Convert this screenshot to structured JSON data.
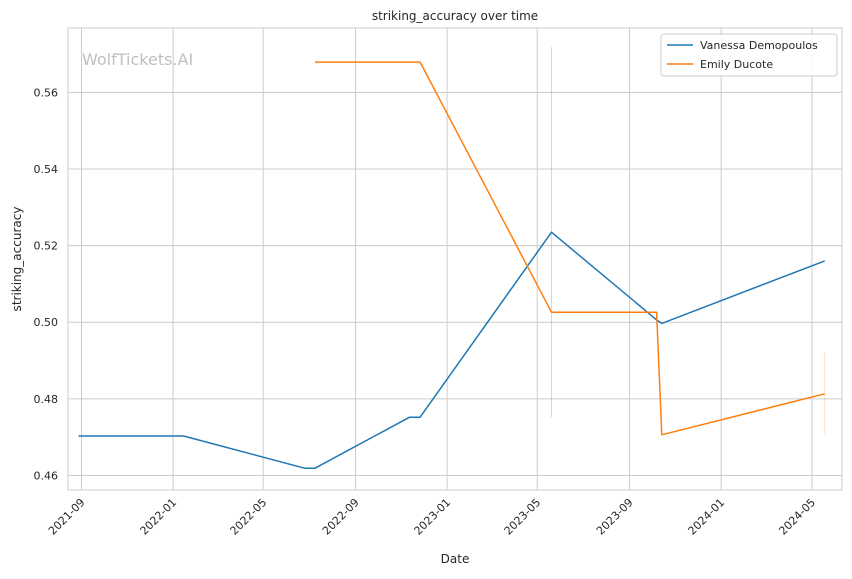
{
  "chart_data": {
    "type": "line",
    "title": "striking_accuracy over time",
    "xlabel": "Date",
    "ylabel": "striking_accuracy",
    "watermark": "WolfTickets.AI",
    "x_ticks": [
      "2021-09",
      "2022-01",
      "2022-05",
      "2022-09",
      "2023-01",
      "2023-05",
      "2023-09",
      "2024-01",
      "2024-05"
    ],
    "y_ticks": [
      "0.46",
      "0.48",
      "0.50",
      "0.52",
      "0.54",
      "0.56"
    ],
    "xlim": [
      "2021-08-14",
      "2024-06-10"
    ],
    "ylim": [
      0.4562,
      0.5768
    ],
    "grid": true,
    "legend_position": "top-right",
    "series": [
      {
        "name": "Vanessa Demopoulos",
        "color": "#1f77b4",
        "x": [
          "2021-08-28",
          "2022-01-15",
          "2022-06-25",
          "2022-07-09",
          "2022-11-12",
          "2022-11-26",
          "2023-05-20",
          "2023-10-07",
          "2023-10-14",
          "2024-05-18"
        ],
        "y": [
          0.4703,
          0.4703,
          0.4619,
          0.4619,
          0.4752,
          0.4752,
          0.5235,
          0.5006,
          0.4997,
          0.516
        ]
      },
      {
        "name": "Emily Ducote",
        "color": "#ff7f0e",
        "x": [
          "2022-07-09",
          "2022-11-26",
          "2023-05-20",
          "2023-10-07",
          "2023-10-14",
          "2024-05-18"
        ],
        "y": [
          0.5679,
          0.5679,
          0.5026,
          0.5026,
          0.4706,
          0.4813
        ]
      }
    ],
    "error_bars": [
      {
        "series": "Vanessa Demopoulos",
        "x": "2023-05-20",
        "low": 0.4752,
        "high": 0.5718
      },
      {
        "series": "Emily Ducote",
        "x": "2024-05-18",
        "low": 0.4706,
        "high": 0.4922
      }
    ]
  }
}
